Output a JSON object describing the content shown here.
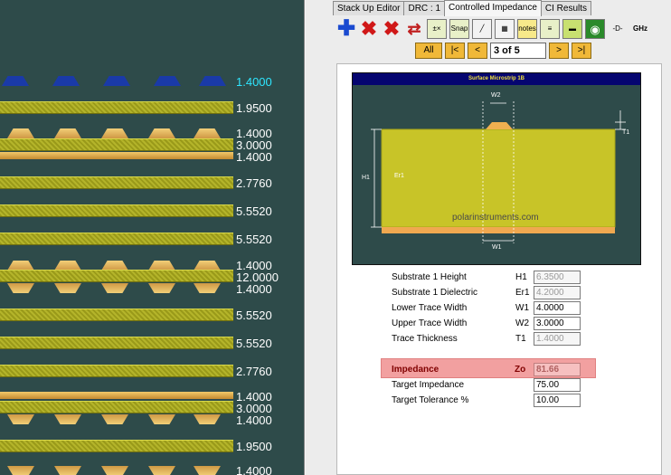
{
  "stackup": {
    "labels": [
      "1.4000",
      "1.9500",
      "1.4000",
      "3.0000",
      "1.4000",
      "2.7760",
      "5.5520",
      "5.5520",
      "1.4000",
      "12.0000",
      "1.4000",
      "5.5520",
      "5.5520",
      "2.7760",
      "1.4000",
      "3.0000",
      "1.4000",
      "1.9500",
      "1.4000"
    ]
  },
  "tabs": [
    "Stack Up Editor",
    "DRC : 1",
    "Controlled Impedance",
    "CI Results"
  ],
  "toolbar": {
    "snap_label": "Snap",
    "notes_label": "notes",
    "ghz_label": "GHz"
  },
  "nav": {
    "all": "All",
    "first": "|<",
    "prev": "<",
    "page": "3 of 5",
    "next": ">",
    "last": ">|"
  },
  "diagram": {
    "title": "Surface Microstrip 1B",
    "watermark": "polarinstruments.com",
    "w2": "W2",
    "w1": "W1",
    "h1": "H1",
    "er1": "Er1",
    "t1": "T1"
  },
  "params": [
    {
      "label": "Substrate 1 Height",
      "symbol": "H1",
      "value": "6.3500",
      "readonly": true
    },
    {
      "label": "Substrate 1 Dielectric",
      "symbol": "Er1",
      "value": "4.2000",
      "readonly": true
    },
    {
      "label": "Lower Trace Width",
      "symbol": "W1",
      "value": "4.0000",
      "readonly": false
    },
    {
      "label": "Upper Trace Width",
      "symbol": "W2",
      "value": "3.0000",
      "readonly": false
    },
    {
      "label": "Trace Thickness",
      "symbol": "T1",
      "value": "1.4000",
      "readonly": true
    }
  ],
  "impedance": {
    "label": "Impedance",
    "symbol": "Zo",
    "value": "81.66"
  },
  "target": {
    "impedance_label": "Target Impedance",
    "impedance_value": "75.00",
    "tolerance_label": "Target Tolerance %",
    "tolerance_value": "10.00"
  },
  "colors": {
    "highlight": "#f2a0a0",
    "stackup_bg": "#2e4b4a",
    "cyan_label": "#2ee6ff"
  }
}
